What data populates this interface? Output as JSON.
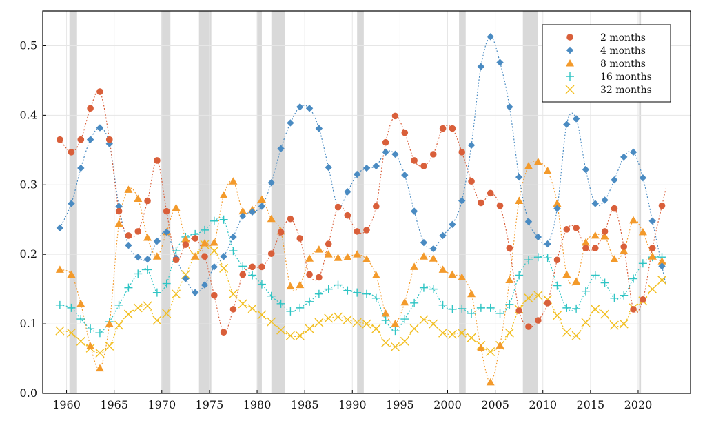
{
  "chart_data": {
    "type": "scatter",
    "title": "",
    "xlabel": "",
    "ylabel": "",
    "xlim": [
      1957.5,
      2025.5
    ],
    "ylim": [
      0,
      0.55
    ],
    "xticks": [
      1960,
      1965,
      1970,
      1975,
      1980,
      1985,
      1990,
      1995,
      2000,
      2005,
      2010,
      2015,
      2020
    ],
    "yticks": [
      0.0,
      0.1,
      0.2,
      0.3,
      0.4,
      0.5
    ],
    "xtick_labels": [
      "1960",
      "1965",
      "1970",
      "1975",
      "1980",
      "1985",
      "1990",
      "1995",
      "2000",
      "2005",
      "2010",
      "2015",
      "2020"
    ],
    "ytick_labels": [
      "0.0",
      "0.1",
      "0.2",
      "0.3",
      "0.4",
      "0.5"
    ],
    "grid": true,
    "legend_position": "top-right",
    "shaded_regions": [
      [
        1960.3,
        1961.1
      ],
      [
        1969.9,
        1970.9
      ],
      [
        1973.9,
        1975.2
      ],
      [
        1980.0,
        1980.5
      ],
      [
        1981.5,
        1982.9
      ],
      [
        1990.5,
        1991.2
      ],
      [
        2001.2,
        2001.9
      ],
      [
        2007.9,
        2009.5
      ],
      [
        2020.1,
        2020.3
      ]
    ],
    "series": [
      {
        "name": "2 months",
        "color": "#d95f3a",
        "marker": "circle",
        "x": [
          1959.3,
          1960.5,
          1961.5,
          1962.5,
          1963.5,
          1964.5,
          1965.5,
          1966.5,
          1967.5,
          1968.5,
          1969.5,
          1970.5,
          1971.5,
          1972.5,
          1973.5,
          1974.5,
          1975.5,
          1976.5,
          1977.5,
          1978.5,
          1979.5,
          1980.5,
          1981.5,
          1982.5,
          1983.5,
          1984.5,
          1985.5,
          1986.5,
          1987.5,
          1988.5,
          1989.5,
          1990.5,
          1991.5,
          1992.5,
          1993.5,
          1994.5,
          1995.5,
          1996.5,
          1997.5,
          1998.5,
          1999.5,
          2000.5,
          2001.5,
          2002.5,
          2003.5,
          2004.5,
          2005.5,
          2006.5,
          2007.5,
          2008.5,
          2009.5,
          2010.5,
          2011.5,
          2012.5,
          2013.5,
          2014.5,
          2015.5,
          2016.5,
          2017.5,
          2018.5,
          2019.5,
          2020.5,
          2021.5,
          2022.5
        ],
        "y": [
          0.365,
          0.347,
          0.365,
          0.41,
          0.434,
          0.365,
          0.262,
          0.227,
          0.233,
          0.277,
          0.335,
          0.262,
          0.192,
          0.214,
          0.223,
          0.197,
          0.141,
          0.088,
          0.121,
          0.171,
          0.182,
          0.182,
          0.201,
          0.232,
          0.251,
          0.223,
          0.171,
          0.167,
          0.215,
          0.268,
          0.256,
          0.233,
          0.235,
          0.269,
          0.361,
          0.399,
          0.375,
          0.335,
          0.327,
          0.344,
          0.381,
          0.381,
          0.347,
          0.305,
          0.274,
          0.288,
          0.27,
          0.209,
          0.119,
          0.096,
          0.105,
          0.13,
          0.192,
          0.236,
          0.238,
          0.209,
          0.209,
          0.233,
          0.266,
          0.211,
          0.121,
          0.135,
          0.209,
          0.27
        ]
      },
      {
        "name": "4 months",
        "color": "#4a8bc2",
        "marker": "diamond",
        "x": [
          1959.3,
          1960.5,
          1961.5,
          1962.5,
          1963.5,
          1964.5,
          1965.5,
          1966.5,
          1967.5,
          1968.5,
          1969.5,
          1970.5,
          1971.5,
          1972.5,
          1973.5,
          1974.5,
          1975.5,
          1976.5,
          1977.5,
          1978.5,
          1979.5,
          1980.5,
          1981.5,
          1982.5,
          1983.5,
          1984.5,
          1985.5,
          1986.5,
          1987.5,
          1988.5,
          1989.5,
          1990.5,
          1991.5,
          1992.5,
          1993.5,
          1994.5,
          1995.5,
          1996.5,
          1997.5,
          1998.5,
          1999.5,
          2000.5,
          2001.5,
          2002.5,
          2003.5,
          2004.5,
          2005.5,
          2006.5,
          2007.5,
          2008.5,
          2009.5,
          2010.5,
          2011.5,
          2012.5,
          2013.5,
          2014.5,
          2015.5,
          2016.5,
          2017.5,
          2018.5,
          2019.5,
          2020.5,
          2021.5,
          2022.5
        ],
        "y": [
          0.238,
          0.273,
          0.324,
          0.365,
          0.382,
          0.359,
          0.269,
          0.213,
          0.196,
          0.193,
          0.219,
          0.232,
          0.195,
          0.165,
          0.145,
          0.156,
          0.182,
          0.197,
          0.225,
          0.255,
          0.261,
          0.269,
          0.303,
          0.352,
          0.389,
          0.412,
          0.41,
          0.381,
          0.325,
          0.268,
          0.29,
          0.315,
          0.324,
          0.327,
          0.347,
          0.344,
          0.314,
          0.262,
          0.217,
          0.208,
          0.227,
          0.243,
          0.277,
          0.357,
          0.47,
          0.513,
          0.476,
          0.412,
          0.311,
          0.247,
          0.225,
          0.215,
          0.266,
          0.387,
          0.395,
          0.322,
          0.273,
          0.278,
          0.307,
          0.34,
          0.347,
          0.31,
          0.248,
          0.183
        ]
      },
      {
        "name": "8 months",
        "color": "#f39a2b",
        "marker": "triangle",
        "x": [
          1959.3,
          1960.5,
          1961.5,
          1962.5,
          1963.5,
          1964.5,
          1965.5,
          1966.5,
          1967.5,
          1968.5,
          1969.5,
          1970.5,
          1971.5,
          1972.5,
          1973.5,
          1974.5,
          1975.5,
          1976.5,
          1977.5,
          1978.5,
          1979.5,
          1980.5,
          1981.5,
          1982.5,
          1983.5,
          1984.5,
          1985.5,
          1986.5,
          1987.5,
          1988.5,
          1989.5,
          1990.5,
          1991.5,
          1992.5,
          1993.5,
          1994.5,
          1995.5,
          1996.5,
          1997.5,
          1998.5,
          1999.5,
          2000.5,
          2001.5,
          2002.5,
          2003.5,
          2004.5,
          2005.5,
          2006.5,
          2007.5,
          2008.5,
          2009.5,
          2010.5,
          2011.5,
          2012.5,
          2013.5,
          2014.5,
          2015.5,
          2016.5,
          2017.5,
          2018.5,
          2019.5,
          2020.5,
          2021.5,
          2022.5
        ],
        "y": [
          0.178,
          0.171,
          0.129,
          0.068,
          0.036,
          0.1,
          0.244,
          0.293,
          0.28,
          0.224,
          0.197,
          0.232,
          0.267,
          0.222,
          0.197,
          0.216,
          0.217,
          0.285,
          0.305,
          0.262,
          0.264,
          0.279,
          0.251,
          0.233,
          0.154,
          0.156,
          0.194,
          0.207,
          0.2,
          0.195,
          0.196,
          0.2,
          0.193,
          0.17,
          0.115,
          0.1,
          0.131,
          0.182,
          0.197,
          0.194,
          0.178,
          0.171,
          0.167,
          0.143,
          0.065,
          0.016,
          0.069,
          0.163,
          0.277,
          0.327,
          0.333,
          0.32,
          0.273,
          0.171,
          0.161,
          0.217,
          0.227,
          0.226,
          0.193,
          0.205,
          0.249,
          0.232,
          0.197,
          0.19
        ]
      },
      {
        "name": "16 months",
        "color": "#2ec4c4",
        "marker": "plus",
        "x": [
          1959.3,
          1960.5,
          1961.5,
          1962.5,
          1963.5,
          1964.5,
          1965.5,
          1966.5,
          1967.5,
          1968.5,
          1969.5,
          1970.5,
          1971.5,
          1972.5,
          1973.5,
          1974.5,
          1975.5,
          1976.5,
          1977.5,
          1978.5,
          1979.5,
          1980.5,
          1981.5,
          1982.5,
          1983.5,
          1984.5,
          1985.5,
          1986.5,
          1987.5,
          1988.5,
          1989.5,
          1990.5,
          1991.5,
          1992.5,
          1993.5,
          1994.5,
          1995.5,
          1996.5,
          1997.5,
          1998.5,
          1999.5,
          2000.5,
          2001.5,
          2002.5,
          2003.5,
          2004.5,
          2005.5,
          2006.5,
          2007.5,
          2008.5,
          2009.5,
          2010.5,
          2011.5,
          2012.5,
          2013.5,
          2014.5,
          2015.5,
          2016.5,
          2017.5,
          2018.5,
          2019.5,
          2020.5,
          2021.5,
          2022.5
        ],
        "y": [
          0.127,
          0.123,
          0.107,
          0.093,
          0.087,
          0.103,
          0.127,
          0.152,
          0.172,
          0.178,
          0.145,
          0.158,
          0.205,
          0.225,
          0.229,
          0.235,
          0.248,
          0.25,
          0.205,
          0.183,
          0.17,
          0.157,
          0.14,
          0.129,
          0.118,
          0.123,
          0.132,
          0.143,
          0.15,
          0.156,
          0.148,
          0.145,
          0.143,
          0.137,
          0.105,
          0.09,
          0.107,
          0.13,
          0.152,
          0.15,
          0.127,
          0.121,
          0.122,
          0.115,
          0.123,
          0.123,
          0.115,
          0.128,
          0.17,
          0.192,
          0.196,
          0.195,
          0.155,
          0.123,
          0.122,
          0.147,
          0.17,
          0.159,
          0.137,
          0.141,
          0.165,
          0.187,
          0.196,
          0.196
        ]
      },
      {
        "name": "32 months",
        "color": "#f2be1f",
        "marker": "cross",
        "x": [
          1959.3,
          1960.5,
          1961.5,
          1962.5,
          1963.5,
          1964.5,
          1965.5,
          1966.5,
          1967.5,
          1968.5,
          1969.5,
          1970.5,
          1971.5,
          1972.5,
          1973.5,
          1974.5,
          1975.5,
          1976.5,
          1977.5,
          1978.5,
          1979.5,
          1980.5,
          1981.5,
          1982.5,
          1983.5,
          1984.5,
          1985.5,
          1986.5,
          1987.5,
          1988.5,
          1989.5,
          1990.5,
          1991.5,
          1992.5,
          1993.5,
          1994.5,
          1995.5,
          1996.5,
          1997.5,
          1998.5,
          1999.5,
          2000.5,
          2001.5,
          2002.5,
          2003.5,
          2004.5,
          2005.5,
          2006.5,
          2007.5,
          2008.5,
          2009.5,
          2010.5,
          2011.5,
          2012.5,
          2013.5,
          2014.5,
          2015.5,
          2016.5,
          2017.5,
          2018.5,
          2019.5,
          2020.5,
          2021.5,
          2022.5
        ],
        "y": [
          0.09,
          0.087,
          0.075,
          0.065,
          0.058,
          0.068,
          0.098,
          0.114,
          0.123,
          0.126,
          0.105,
          0.115,
          0.143,
          0.171,
          0.198,
          0.214,
          0.205,
          0.18,
          0.143,
          0.129,
          0.122,
          0.113,
          0.103,
          0.091,
          0.083,
          0.083,
          0.093,
          0.102,
          0.108,
          0.11,
          0.106,
          0.102,
          0.1,
          0.093,
          0.073,
          0.067,
          0.075,
          0.093,
          0.106,
          0.1,
          0.087,
          0.085,
          0.087,
          0.08,
          0.069,
          0.06,
          0.069,
          0.087,
          0.121,
          0.137,
          0.141,
          0.135,
          0.112,
          0.088,
          0.083,
          0.102,
          0.121,
          0.114,
          0.098,
          0.1,
          0.123,
          0.133,
          0.15,
          0.163
        ]
      }
    ]
  }
}
